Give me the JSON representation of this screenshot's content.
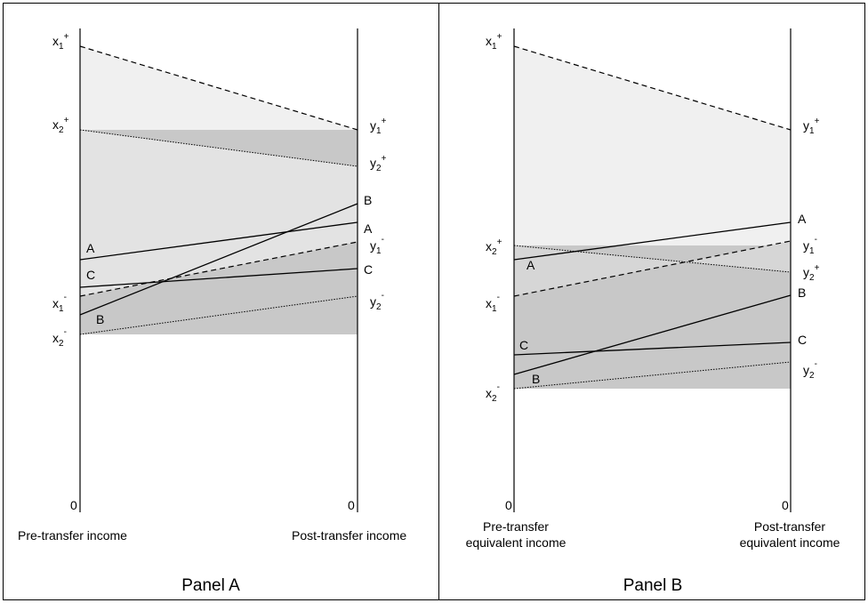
{
  "panels": [
    {
      "title": "Panel A",
      "axis_left": {
        "label": "Pre-transfer income",
        "zero": "0"
      },
      "axis_right": {
        "label": "Post-transfer income",
        "zero": "0"
      },
      "left_labels": [
        {
          "base": "x",
          "sub": "1",
          "sup": "+"
        },
        {
          "base": "x",
          "sub": "2",
          "sup": "+"
        },
        {
          "base": "x",
          "sub": "1",
          "sup": "-"
        },
        {
          "base": "x",
          "sub": "2",
          "sup": "-"
        }
      ],
      "right_labels": [
        {
          "base": "y",
          "sub": "1",
          "sup": "+"
        },
        {
          "base": "y",
          "sub": "2",
          "sup": "+"
        },
        {
          "base": "y",
          "sub": "1",
          "sup": "-"
        },
        {
          "base": "y",
          "sub": "2",
          "sup": "-"
        }
      ],
      "households": {
        "left": [
          "A",
          "C",
          "B"
        ],
        "right": [
          "B",
          "A",
          "C"
        ]
      }
    },
    {
      "title": "Panel B",
      "axis_left": {
        "label_lines": [
          "Pre-transfer",
          "equivalent income"
        ],
        "zero": "0"
      },
      "axis_right": {
        "label_lines": [
          "Post-transfer",
          "equivalent income"
        ],
        "zero": "0"
      },
      "left_labels": [
        {
          "base": "x",
          "sub": "1",
          "sup": "+"
        },
        {
          "base": "x",
          "sub": "2",
          "sup": "+"
        },
        {
          "base": "x",
          "sub": "1",
          "sup": "-"
        },
        {
          "base": "x",
          "sub": "2",
          "sup": "-"
        }
      ],
      "right_labels": [
        {
          "base": "y",
          "sub": "1",
          "sup": "+"
        },
        {
          "base": "y",
          "sub": "1",
          "sup": "-"
        },
        {
          "base": "y",
          "sub": "2",
          "sup": "+"
        },
        {
          "base": "y",
          "sub": "2",
          "sup": "-"
        }
      ],
      "households": {
        "left": [
          "A",
          "C",
          "B"
        ],
        "right": [
          "A",
          "B",
          "C"
        ]
      }
    }
  ],
  "colors": {
    "light_band": "#f0f0f0",
    "dark_band": "#c8c8c8",
    "line": "#000000",
    "frame": "#000000"
  }
}
